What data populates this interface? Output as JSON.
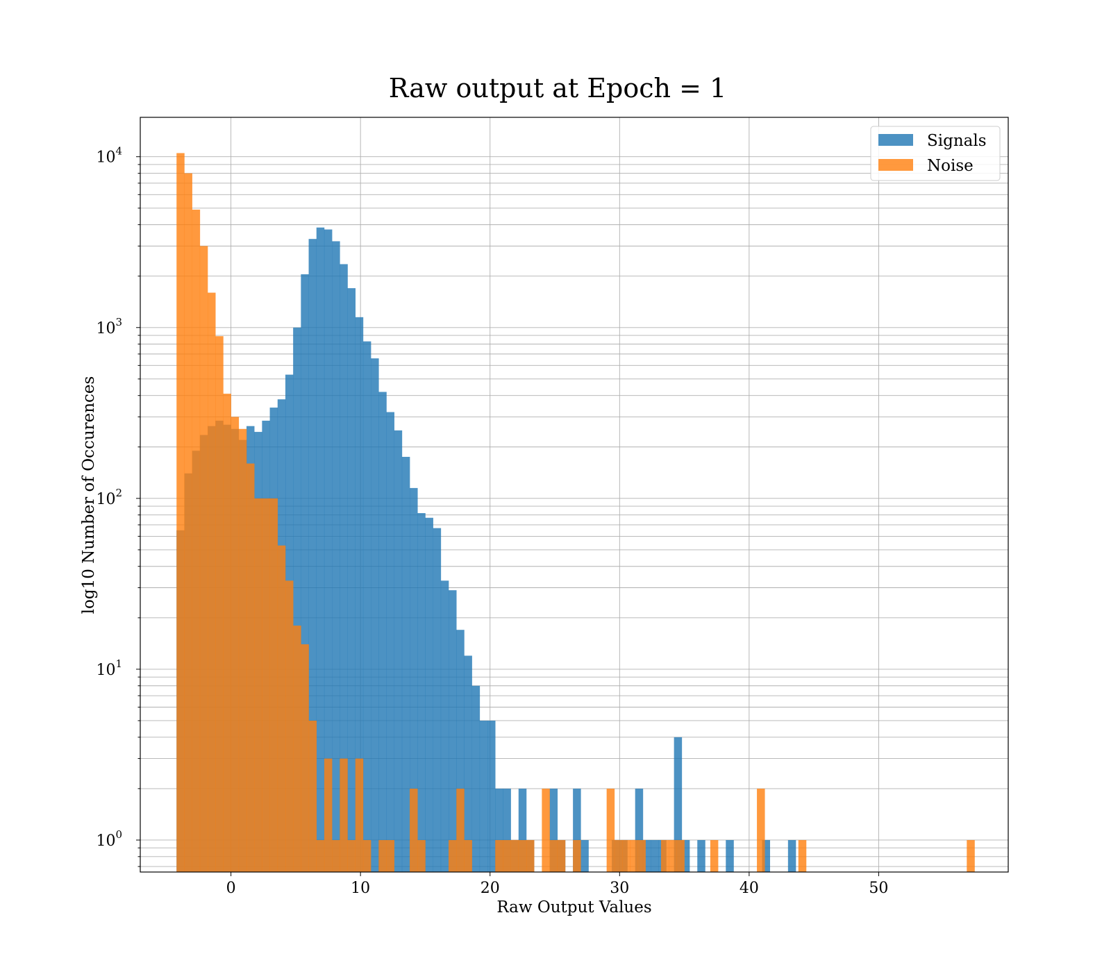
{
  "chart_data": {
    "type": "histogram",
    "title": "Raw output at Epoch = 1",
    "xlabel": "Raw Output Values",
    "ylabel": "log10 Number of Occurences",
    "xlim": [
      -7,
      60
    ],
    "ylim": [
      0.65,
      17000
    ],
    "yscale": "log",
    "grid": true,
    "legend_position": "top-right",
    "bin_width": 0.6,
    "xticks": [
      0,
      10,
      20,
      30,
      40,
      50
    ],
    "yticks": [
      {
        "base": "10",
        "exp": "0",
        "value": 1
      },
      {
        "base": "10",
        "exp": "1",
        "value": 10
      },
      {
        "base": "10",
        "exp": "2",
        "value": 100
      },
      {
        "base": "10",
        "exp": "3",
        "value": 1000
      },
      {
        "base": "10",
        "exp": "4",
        "value": 10000
      }
    ],
    "series": [
      {
        "name": "Signals",
        "color": "#1f77b4",
        "opacity": 0.8,
        "bins": [
          [
            -4.2,
            65
          ],
          [
            -3.6,
            140
          ],
          [
            -3.0,
            190
          ],
          [
            -2.4,
            235
          ],
          [
            -1.8,
            265
          ],
          [
            -1.2,
            285
          ],
          [
            -0.6,
            270
          ],
          [
            0.0,
            255
          ],
          [
            0.6,
            220
          ],
          [
            1.2,
            265
          ],
          [
            1.8,
            245
          ],
          [
            2.4,
            285
          ],
          [
            3.0,
            340
          ],
          [
            3.6,
            380
          ],
          [
            4.2,
            530
          ],
          [
            4.8,
            1000
          ],
          [
            5.4,
            2050
          ],
          [
            6.0,
            3300
          ],
          [
            6.6,
            3850
          ],
          [
            7.2,
            3750
          ],
          [
            7.8,
            3200
          ],
          [
            8.4,
            2350
          ],
          [
            9.0,
            1700
          ],
          [
            9.6,
            1150
          ],
          [
            10.2,
            830
          ],
          [
            10.8,
            660
          ],
          [
            11.4,
            420
          ],
          [
            12.0,
            320
          ],
          [
            12.6,
            250
          ],
          [
            13.2,
            175
          ],
          [
            13.8,
            115
          ],
          [
            14.4,
            82
          ],
          [
            15.0,
            77
          ],
          [
            15.6,
            67
          ],
          [
            16.2,
            33
          ],
          [
            16.8,
            29
          ],
          [
            17.4,
            17
          ],
          [
            18.0,
            12
          ],
          [
            18.6,
            8
          ],
          [
            19.2,
            5
          ],
          [
            19.8,
            5
          ],
          [
            20.4,
            2
          ],
          [
            21.0,
            2
          ],
          [
            21.6,
            1
          ],
          [
            22.2,
            2
          ],
          [
            22.8,
            1
          ],
          [
            24.6,
            2
          ],
          [
            25.2,
            1
          ],
          [
            26.4,
            2
          ],
          [
            27.0,
            1
          ],
          [
            29.4,
            1
          ],
          [
            30.0,
            1
          ],
          [
            31.2,
            2
          ],
          [
            31.8,
            1
          ],
          [
            32.4,
            1
          ],
          [
            33.0,
            1
          ],
          [
            34.2,
            4
          ],
          [
            34.8,
            1
          ],
          [
            36.0,
            1
          ],
          [
            38.2,
            1
          ],
          [
            41.0,
            1
          ],
          [
            43.0,
            1
          ]
        ]
      },
      {
        "name": "Noise",
        "color": "#ff7f0e",
        "opacity": 0.8,
        "bins": [
          [
            -4.2,
            10500
          ],
          [
            -3.6,
            8000
          ],
          [
            -3.0,
            4900
          ],
          [
            -2.4,
            3000
          ],
          [
            -1.8,
            1600
          ],
          [
            -1.2,
            890
          ],
          [
            -0.6,
            410
          ],
          [
            0.0,
            300
          ],
          [
            0.6,
            255
          ],
          [
            1.2,
            160
          ],
          [
            1.8,
            100
          ],
          [
            2.4,
            100
          ],
          [
            3.0,
            100
          ],
          [
            3.6,
            53
          ],
          [
            4.2,
            33
          ],
          [
            4.8,
            18
          ],
          [
            5.4,
            14
          ],
          [
            6.0,
            5
          ],
          [
            6.6,
            1
          ],
          [
            7.2,
            3
          ],
          [
            7.8,
            1
          ],
          [
            8.4,
            3
          ],
          [
            9.0,
            1
          ],
          [
            9.6,
            3
          ],
          [
            10.2,
            1
          ],
          [
            11.4,
            1
          ],
          [
            12.0,
            1
          ],
          [
            13.8,
            2
          ],
          [
            14.4,
            1
          ],
          [
            16.8,
            1
          ],
          [
            17.4,
            2
          ],
          [
            18.0,
            1
          ],
          [
            20.4,
            1
          ],
          [
            21.0,
            1
          ],
          [
            21.6,
            1
          ],
          [
            22.2,
            1
          ],
          [
            22.8,
            1
          ],
          [
            24.0,
            2
          ],
          [
            24.6,
            1
          ],
          [
            25.2,
            1
          ],
          [
            26.4,
            1
          ],
          [
            29.0,
            2
          ],
          [
            29.6,
            1
          ],
          [
            30.2,
            1
          ],
          [
            30.8,
            1
          ],
          [
            31.4,
            1
          ],
          [
            33.2,
            1
          ],
          [
            33.8,
            1
          ],
          [
            34.4,
            1
          ],
          [
            37.0,
            1
          ],
          [
            40.6,
            2
          ],
          [
            43.8,
            1
          ],
          [
            56.8,
            1
          ]
        ]
      }
    ]
  }
}
